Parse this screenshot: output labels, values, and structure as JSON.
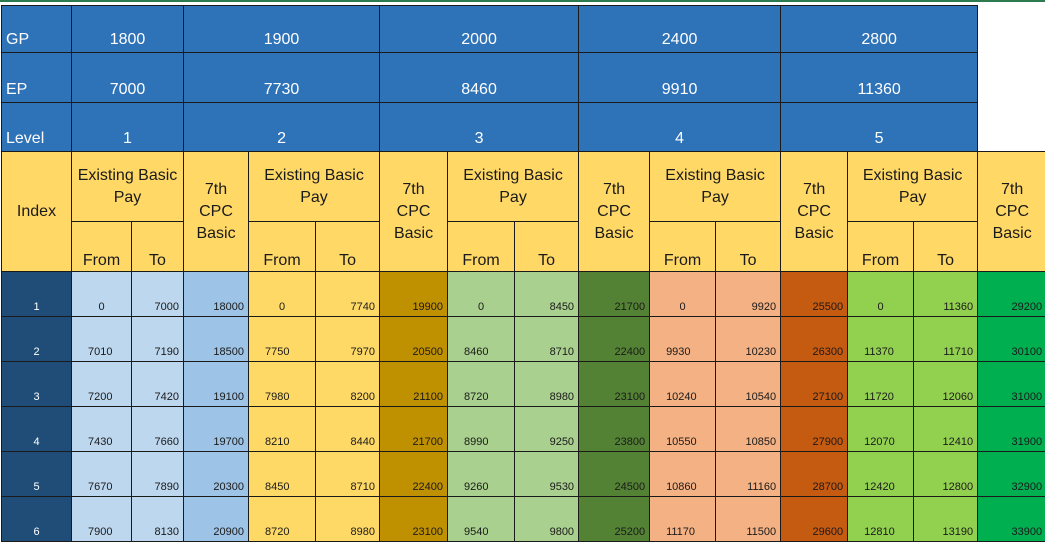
{
  "header_labels": {
    "gp": "GP",
    "ep": "EP",
    "level": "Level",
    "index": "Index"
  },
  "sub_labels": {
    "existing_basic_pay": "Existing Basic Pay",
    "seventh_cpc_basic": "7th CPC Basic",
    "from": "From",
    "to": "To"
  },
  "groups": [
    {
      "gp": "1800",
      "ep": "7000",
      "level": "1",
      "colors": {
        "from": "#bdd7ee",
        "to": "#bdd7ee",
        "cpc": "#9dc3e6"
      }
    },
    {
      "gp": "1900",
      "ep": "7730",
      "level": "2",
      "colors": {
        "from": "#ffd966",
        "to": "#ffd966",
        "cpc": "#bf9000"
      }
    },
    {
      "gp": "2000",
      "ep": "8460",
      "level": "3",
      "colors": {
        "from": "#a9d08e",
        "to": "#a9d08e",
        "cpc": "#548235"
      }
    },
    {
      "gp": "2400",
      "ep": "9910",
      "level": "4",
      "colors": {
        "from": "#f4b183",
        "to": "#f4b183",
        "cpc": "#c55a11"
      }
    },
    {
      "gp": "2800",
      "ep": "11360",
      "level": "5",
      "colors": {
        "from": "#92d050",
        "to": "#92d050",
        "cpc": "#00b050"
      }
    }
  ],
  "rows": [
    {
      "index": "1",
      "cells": [
        [
          "0",
          "7000",
          "18000"
        ],
        [
          "0",
          "7740",
          "19900"
        ],
        [
          "0",
          "8450",
          "21700"
        ],
        [
          "0",
          "9920",
          "25500"
        ],
        [
          "0",
          "11360",
          "29200"
        ]
      ]
    },
    {
      "index": "2",
      "cells": [
        [
          "7010",
          "7190",
          "18500"
        ],
        [
          "7750",
          "7970",
          "20500"
        ],
        [
          "8460",
          "8710",
          "22400"
        ],
        [
          "9930",
          "10230",
          "26300"
        ],
        [
          "11370",
          "11710",
          "30100"
        ]
      ]
    },
    {
      "index": "3",
      "cells": [
        [
          "7200",
          "7420",
          "19100"
        ],
        [
          "7980",
          "8200",
          "21100"
        ],
        [
          "8720",
          "8980",
          "23100"
        ],
        [
          "10240",
          "10540",
          "27100"
        ],
        [
          "11720",
          "12060",
          "31000"
        ]
      ]
    },
    {
      "index": "4",
      "cells": [
        [
          "7430",
          "7660",
          "19700"
        ],
        [
          "8210",
          "8440",
          "21700"
        ],
        [
          "8990",
          "9250",
          "23800"
        ],
        [
          "10550",
          "10850",
          "27900"
        ],
        [
          "12070",
          "12410",
          "31900"
        ]
      ]
    },
    {
      "index": "5",
      "cells": [
        [
          "7670",
          "7890",
          "20300"
        ],
        [
          "8450",
          "8710",
          "22400"
        ],
        [
          "9260",
          "9530",
          "24500"
        ],
        [
          "10860",
          "11160",
          "28700"
        ],
        [
          "12420",
          "12800",
          "32900"
        ]
      ]
    },
    {
      "index": "6",
      "cells": [
        [
          "7900",
          "8130",
          "20900"
        ],
        [
          "8720",
          "8980",
          "23100"
        ],
        [
          "9540",
          "9800",
          "25200"
        ],
        [
          "11170",
          "11500",
          "29600"
        ],
        [
          "12810",
          "13190",
          "33900"
        ]
      ]
    }
  ]
}
